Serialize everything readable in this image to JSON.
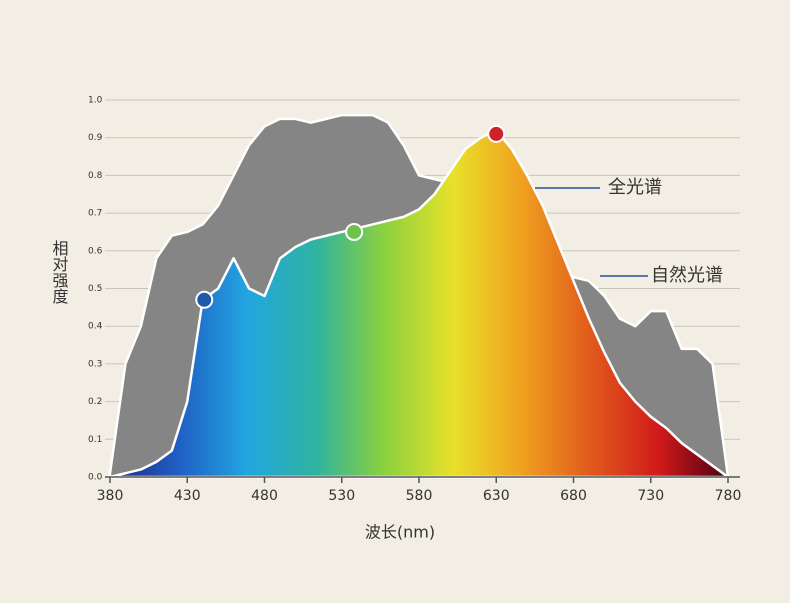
{
  "chart_data": {
    "type": "area",
    "xlabel": "波长(nm)",
    "ylabel": "相对强度",
    "x": [
      380,
      390,
      400,
      410,
      420,
      430,
      440,
      450,
      460,
      470,
      480,
      490,
      500,
      510,
      520,
      530,
      540,
      550,
      560,
      570,
      580,
      590,
      600,
      610,
      620,
      630,
      640,
      650,
      660,
      670,
      680,
      690,
      700,
      710,
      720,
      730,
      740,
      750,
      760,
      770,
      780
    ],
    "series": [
      {
        "name": "自然光谱",
        "color": "#858585",
        "values": [
          0.01,
          0.3,
          0.4,
          0.58,
          0.64,
          0.65,
          0.67,
          0.72,
          0.8,
          0.88,
          0.93,
          0.95,
          0.95,
          0.94,
          0.95,
          0.96,
          0.96,
          0.96,
          0.94,
          0.88,
          0.8,
          0.79,
          0.78,
          0.78,
          0.77,
          0.76,
          0.74,
          0.7,
          0.65,
          0.57,
          0.53,
          0.52,
          0.48,
          0.42,
          0.4,
          0.44,
          0.44,
          0.34,
          0.34,
          0.3,
          0.0
        ]
      },
      {
        "name": "全光谱",
        "gradient": [
          "#1a2a86",
          "#1f5fc4",
          "#22a6e0",
          "#2fb3a0",
          "#8cd13e",
          "#e8e12a",
          "#f0a020",
          "#e05a1c",
          "#d01a1a",
          "#4a0010"
        ],
        "values": [
          0.0,
          0.01,
          0.02,
          0.04,
          0.07,
          0.2,
          0.47,
          0.5,
          0.58,
          0.5,
          0.48,
          0.58,
          0.61,
          0.63,
          0.64,
          0.65,
          0.66,
          0.67,
          0.68,
          0.69,
          0.71,
          0.75,
          0.81,
          0.87,
          0.9,
          0.92,
          0.87,
          0.8,
          0.72,
          0.62,
          0.52,
          0.42,
          0.33,
          0.25,
          0.2,
          0.16,
          0.13,
          0.09,
          0.06,
          0.03,
          0.0
        ]
      }
    ],
    "legend_color": "#2a4fa0",
    "markers": [
      {
        "x": 441,
        "y": 0.47,
        "color": "#1f5aa8"
      },
      {
        "x": 538,
        "y": 0.65,
        "color": "#6cc24a"
      },
      {
        "x": 630,
        "y": 0.91,
        "color": "#d0202a"
      }
    ],
    "xlim": [
      380,
      780
    ],
    "xticks": [
      380,
      430,
      480,
      530,
      580,
      630,
      680,
      730,
      780
    ],
    "ylim": [
      0,
      1
    ],
    "yticks": [
      {
        "value": 0,
        "label": "0.0"
      },
      0.1,
      0.2,
      0.3,
      0.4,
      0.5,
      0.6,
      0.7,
      0.8,
      0.9,
      {
        "value": 1,
        "label": "1.0"
      }
    ],
    "grid": true
  }
}
